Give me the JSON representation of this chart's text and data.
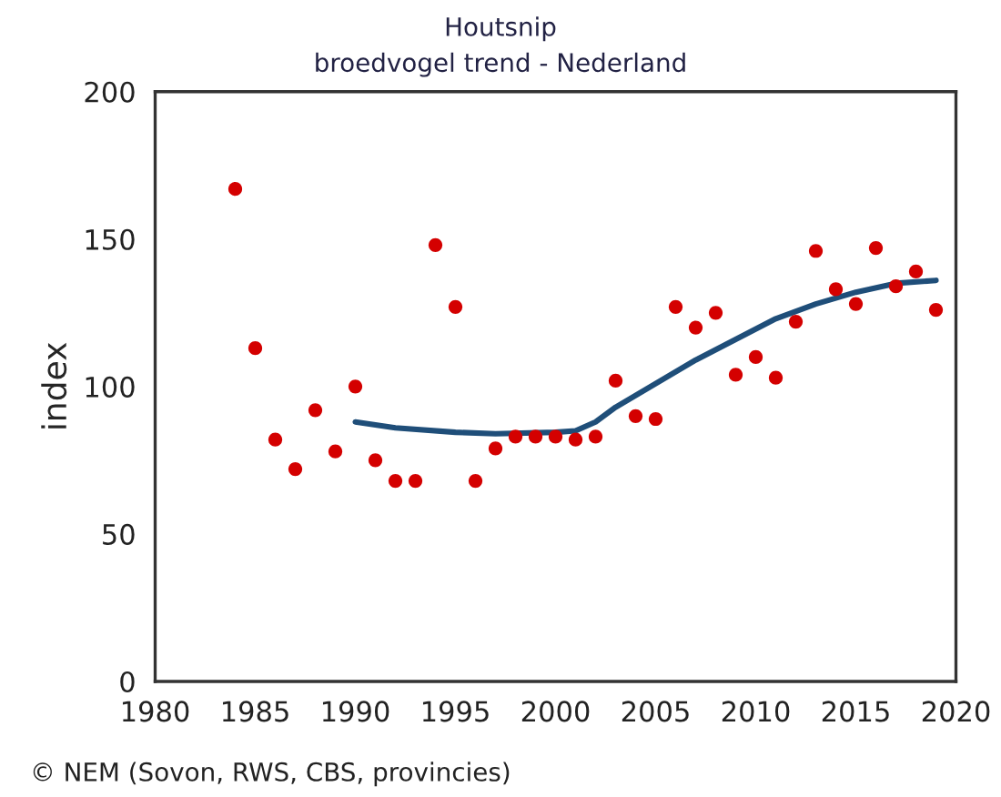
{
  "chart_data": {
    "type": "scatter",
    "title": "Houtsnip",
    "subtitle": "broedvogel trend - Nederland",
    "ylabel": "index",
    "annotations": [
      "© NEM (Sovon, RWS, CBS, provincies)"
    ],
    "xlim": [
      1980,
      2020
    ],
    "xticks": [
      1980,
      1985,
      1990,
      1995,
      2000,
      2005,
      2010,
      2015,
      2020
    ],
    "ylim": [
      0,
      200
    ],
    "yticks": [
      0,
      50,
      100,
      150,
      200
    ],
    "grid": false,
    "legend": false,
    "series": [
      {
        "marker": "circle",
        "color": "#d40000",
        "x": [
          1984,
          1985,
          1986,
          1987,
          1988,
          1989,
          1990,
          1991,
          1992,
          1993,
          1994,
          1995,
          1996,
          1997,
          1998,
          1999,
          2000,
          2001,
          2002,
          2003,
          2004,
          2005,
          2006,
          2007,
          2008,
          2009,
          2010,
          2011,
          2012,
          2013,
          2014,
          2015,
          2016,
          2017,
          2018,
          2019
        ],
        "values": [
          167,
          113,
          82,
          72,
          92,
          78,
          100,
          75,
          68,
          68,
          148,
          127,
          68,
          79,
          83,
          83,
          83,
          82,
          83,
          102,
          90,
          89,
          127,
          120,
          125,
          104,
          110,
          103,
          122,
          146,
          133,
          128,
          147,
          134,
          139,
          126
        ]
      },
      {
        "type": "line",
        "color": "#1f4e79",
        "line_style": "solid",
        "marker": "none",
        "x": [
          1990,
          1992,
          1995,
          1997,
          2000,
          2001,
          2002,
          2003,
          2005,
          2007,
          2009,
          2011,
          2013,
          2015,
          2017,
          2019
        ],
        "values": [
          88,
          86,
          84.5,
          84,
          84.5,
          85,
          88,
          93,
          101,
          109,
          116,
          123,
          128,
          132,
          135,
          136
        ]
      }
    ]
  }
}
